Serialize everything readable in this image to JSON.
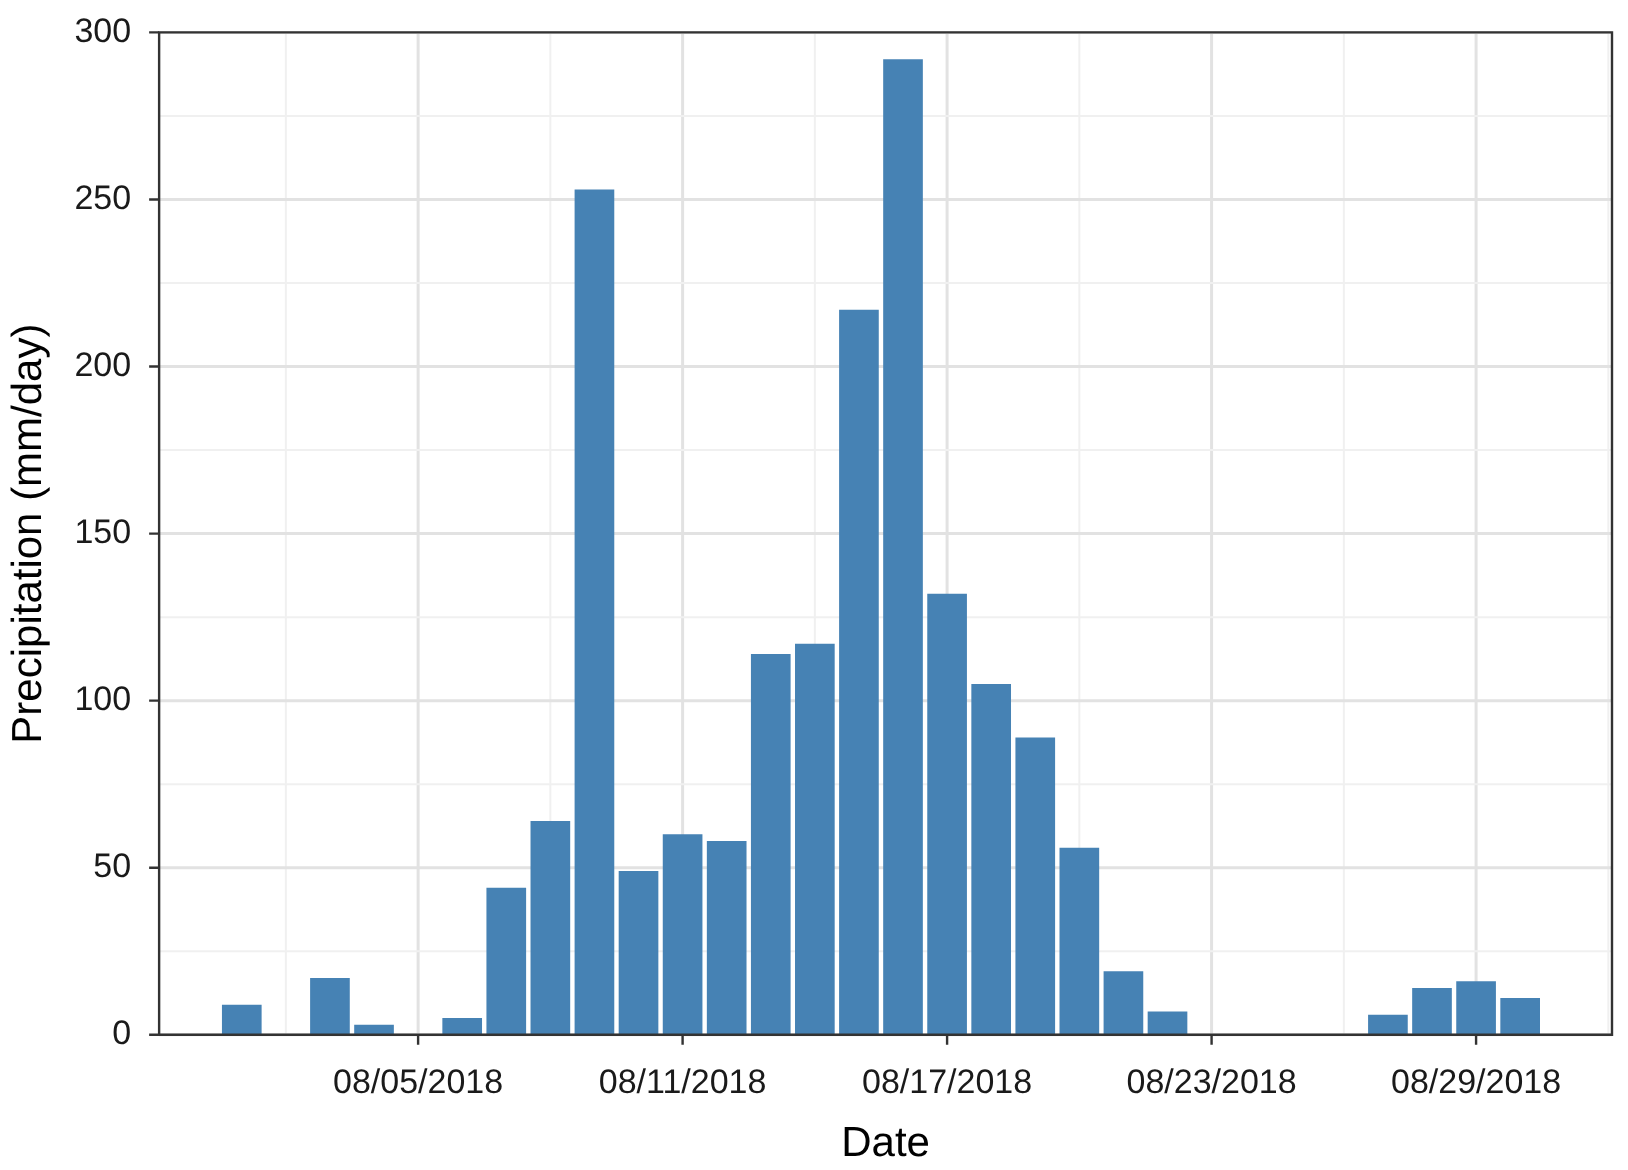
{
  "chart_data": {
    "type": "bar",
    "xlabel": "Date",
    "ylabel": "Precipitation (mm/day)",
    "color": "#4682b4",
    "x": [
      "2018-08-01",
      "2018-08-03",
      "2018-08-04",
      "2018-08-06",
      "2018-08-07",
      "2018-08-08",
      "2018-08-09",
      "2018-08-10",
      "2018-08-11",
      "2018-08-12",
      "2018-08-13",
      "2018-08-14",
      "2018-08-15",
      "2018-08-16",
      "2018-08-17",
      "2018-08-18",
      "2018-08-19",
      "2018-08-20",
      "2018-08-21",
      "2018-08-22",
      "2018-08-27",
      "2018-08-28",
      "2018-08-29",
      "2018-08-30"
    ],
    "values": [
      9,
      17,
      3,
      5,
      44,
      64,
      253,
      49,
      60,
      58,
      114,
      117,
      217,
      292,
      132,
      105,
      89,
      56,
      19,
      7,
      6,
      14,
      16,
      11
    ],
    "xlim": [
      "2018-07-30T03:00",
      "2018-09-01T02:00"
    ],
    "xticks": [
      {
        "value": "2018-08-05",
        "label": "08/05/2018"
      },
      {
        "value": "2018-08-11",
        "label": "08/11/2018"
      },
      {
        "value": "2018-08-17",
        "label": "08/17/2018"
      },
      {
        "value": "2018-08-23",
        "label": "08/23/2018"
      },
      {
        "value": "2018-08-29",
        "label": "08/29/2018"
      }
    ],
    "ylim": [
      0,
      300
    ],
    "yticks": [
      0,
      50,
      100,
      150,
      200,
      250,
      300
    ],
    "grid": true,
    "legend": false
  }
}
